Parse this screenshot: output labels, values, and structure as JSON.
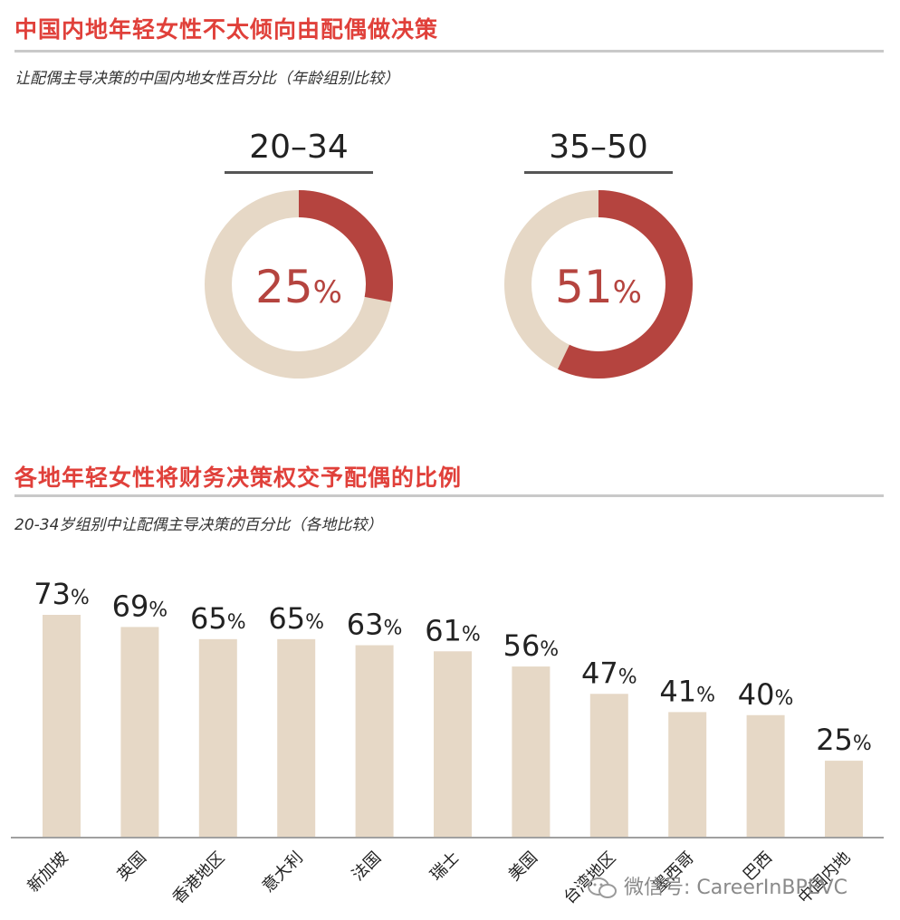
{
  "section1": {
    "title": "中国内地年轻女性不太倾向由配偶做决策",
    "subtitle": "让配偶主导决策的中国内地女性百分比（年龄组别比较）"
  },
  "donuts": [
    {
      "label": "20–34",
      "value": 25,
      "text": "25",
      "suffix": "%"
    },
    {
      "label": "35–50",
      "value": 51,
      "text": "51",
      "suffix": "%"
    }
  ],
  "section2": {
    "title": "各地年轻女性将财务决策权交予配偶的比例",
    "subtitle": "20-34岁组别中让配偶主导决策的百分比（各地比较）"
  },
  "colors": {
    "accent_red": "#e0403a",
    "donut_fill": "#b5443f",
    "donut_track": "#e6d8c6",
    "bar": "#e6d8c6",
    "rule": "#c9c9c9"
  },
  "chart_data": [
    {
      "type": "pie",
      "categories": [
        "20–34",
        "35–50"
      ],
      "values": [
        25,
        51
      ],
      "unit": "%"
    },
    {
      "type": "bar",
      "categories": [
        "新加坡",
        "英国",
        "香港地区",
        "意大利",
        "法国",
        "瑞士",
        "美国",
        "台湾地区",
        "墨西哥",
        "巴西",
        "中国内地"
      ],
      "values": [
        73,
        69,
        65,
        65,
        63,
        61,
        56,
        47,
        41,
        40,
        25
      ],
      "unit": "%",
      "ylim": [
        0,
        73
      ],
      "grid": false
    }
  ],
  "watermark": "微信号: CareerInBPEVC"
}
